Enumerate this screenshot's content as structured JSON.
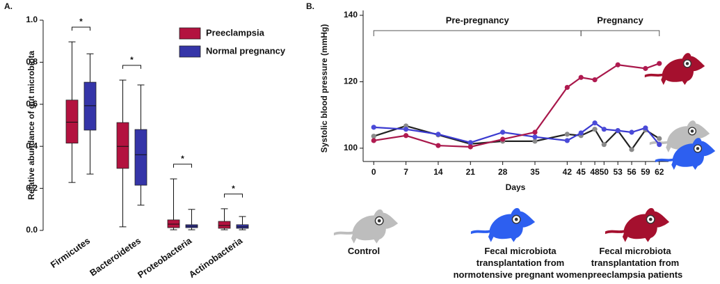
{
  "chart_data": [
    {
      "type": "box",
      "panel_label": "A.",
      "ylabel": "Relative abundance of gut microbiota",
      "categories": [
        "Firmicutes",
        "Bacteroidetes",
        "Proteobacteria",
        "Actinobacteria"
      ],
      "series": [
        {
          "name": "Preeclampsia",
          "color": "#b3123f",
          "values": [
            {
              "min": 0.228,
              "q1": 0.415,
              "median": 0.515,
              "q3": 0.62,
              "max": 0.897
            },
            {
              "min": 0.017,
              "q1": 0.295,
              "median": 0.4,
              "q3": 0.513,
              "max": 0.715
            },
            {
              "min": 0.003,
              "q1": 0.013,
              "median": 0.03,
              "q3": 0.05,
              "max": 0.245
            },
            {
              "min": 0.003,
              "q1": 0.01,
              "median": 0.023,
              "q3": 0.043,
              "max": 0.103
            }
          ]
        },
        {
          "name": "Normal pregnancy",
          "color": "#3535a8",
          "values": [
            {
              "min": 0.268,
              "q1": 0.477,
              "median": 0.593,
              "q3": 0.705,
              "max": 0.84
            },
            {
              "min": 0.12,
              "q1": 0.215,
              "median": 0.36,
              "q3": 0.48,
              "max": 0.692
            },
            {
              "min": 0.003,
              "q1": 0.013,
              "median": 0.02,
              "q3": 0.027,
              "max": 0.1
            },
            {
              "min": 0.003,
              "q1": 0.01,
              "median": 0.017,
              "q3": 0.027,
              "max": 0.066
            }
          ]
        }
      ],
      "significance": [
        "*",
        "*",
        "*",
        "*"
      ],
      "ylim": [
        0,
        1
      ],
      "yticks": [
        {
          "value": 0,
          "label": "0.0"
        },
        0.2,
        0.4,
        0.6,
        0.8,
        {
          "value": 1,
          "label": "1.0"
        }
      ]
    },
    {
      "type": "line",
      "panel_label": "B.",
      "xlabel": "Days",
      "ylabel": "Systolic blood pressure (mmHg)",
      "series": [
        {
          "name": "Control",
          "color": "#222222",
          "marker_color": "#8a8a8a",
          "icon_color": "#bdbdbd",
          "x": [
            0,
            7,
            14,
            21,
            28,
            35,
            42,
            45,
            48,
            50,
            53,
            56,
            59,
            62
          ],
          "values": [
            103.6,
            106.7,
            104,
            101.3,
            102.1,
            102.1,
            104.2,
            103.8,
            105.7,
            101.1,
            105.3,
            99.6,
            105.5,
            102.9
          ]
        },
        {
          "name": "Fecal microbiota transplantation from normotensive pregnant women",
          "color": "#3a3ad0",
          "marker_color": "#4a4ad8",
          "icon_color": "#2d5ff0",
          "x": [
            0,
            7,
            14,
            21,
            28,
            35,
            42,
            45,
            48,
            50,
            53,
            56,
            59,
            62
          ],
          "values": [
            106.3,
            105.7,
            104.2,
            101.7,
            104.8,
            103.4,
            102.3,
            104.6,
            107.6,
            105.7,
            105.3,
            104.8,
            106.1,
            101.1
          ]
        },
        {
          "name": "Fecal microbiota transplantation from preeclampsia patients",
          "color": "#a8174a",
          "marker_color": "#b01a50",
          "icon_color": "#a5102e",
          "x": [
            0,
            7,
            14,
            21,
            28,
            35,
            42,
            45,
            48,
            53,
            59,
            62
          ],
          "values": [
            102.3,
            103.8,
            100.8,
            100.4,
            102.7,
            104.8,
            118.3,
            121.3,
            120.6,
            125.1,
            124,
            125.5
          ]
        }
      ],
      "brackets": [
        {
          "label": "Pre-pregnancy",
          "from": 0,
          "to": 45
        },
        {
          "label": "Pregnancy",
          "from": 45,
          "to": 62
        }
      ],
      "xlim": [
        -2,
        64
      ],
      "xticks": [
        0,
        7,
        14,
        21,
        28,
        35,
        42,
        45,
        48,
        50,
        53,
        56,
        59,
        62
      ],
      "ylim": [
        96,
        140
      ],
      "yticks": [
        100,
        120,
        140
      ]
    }
  ]
}
